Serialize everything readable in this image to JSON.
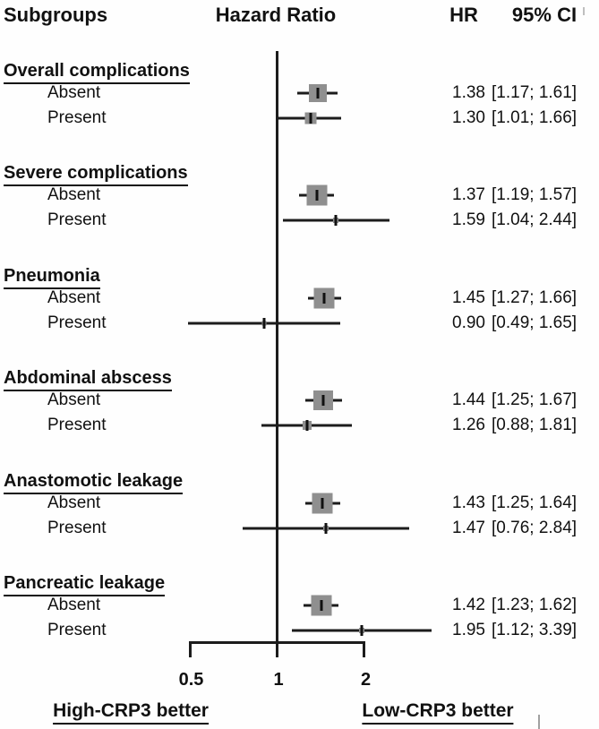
{
  "header": {
    "subgroups": "Subgroups",
    "hazard_ratio": "Hazard Ratio",
    "hr": "HR",
    "ci": "95% CI"
  },
  "footer": {
    "left_label": "High-CRP3 better",
    "right_label": "Low-CRP3 better"
  },
  "chart_data": {
    "type": "forest",
    "effect_measure": "Hazard Ratio",
    "scale": "log",
    "reference_line": 1,
    "axis_ticks": [
      0.5,
      1,
      2
    ],
    "axis_range": [
      0.5,
      2
    ],
    "colors": {
      "square": "#8f8f8f",
      "line": "#1c1c1c",
      "text": "#111111"
    },
    "groups": [
      {
        "name": "Overall complications",
        "rows": [
          {
            "label": "Absent",
            "hr": 1.38,
            "lo": 1.17,
            "hi": 1.61,
            "square": 20
          },
          {
            "label": "Present",
            "hr": 1.3,
            "lo": 1.01,
            "hi": 1.66,
            "square": 13
          }
        ]
      },
      {
        "name": "Severe complications",
        "rows": [
          {
            "label": "Absent",
            "hr": 1.37,
            "lo": 1.19,
            "hi": 1.57,
            "square": 23
          },
          {
            "label": "Present",
            "hr": 1.59,
            "lo": 1.04,
            "hi": 2.44,
            "square": 6
          }
        ]
      },
      {
        "name": "Pneumonia",
        "rows": [
          {
            "label": "Absent",
            "hr": 1.45,
            "lo": 1.27,
            "hi": 1.66,
            "square": 23
          },
          {
            "label": "Present",
            "hr": 0.9,
            "lo": 0.49,
            "hi": 1.65,
            "square": 5
          }
        ]
      },
      {
        "name": "Abdominal abscess",
        "rows": [
          {
            "label": "Absent",
            "hr": 1.44,
            "lo": 1.25,
            "hi": 1.67,
            "square": 22
          },
          {
            "label": "Present",
            "hr": 1.26,
            "lo": 0.88,
            "hi": 1.81,
            "square": 10
          }
        ]
      },
      {
        "name": "Anastomotic leakage",
        "rows": [
          {
            "label": "Absent",
            "hr": 1.43,
            "lo": 1.25,
            "hi": 1.64,
            "square": 23
          },
          {
            "label": "Present",
            "hr": 1.47,
            "lo": 0.76,
            "hi": 2.84,
            "square": 6
          }
        ]
      },
      {
        "name": "Pancreatic leakage",
        "rows": [
          {
            "label": "Absent",
            "hr": 1.42,
            "lo": 1.23,
            "hi": 1.62,
            "square": 23
          },
          {
            "label": "Present",
            "hr": 1.95,
            "lo": 1.12,
            "hi": 3.39,
            "square": 6
          }
        ]
      }
    ]
  }
}
